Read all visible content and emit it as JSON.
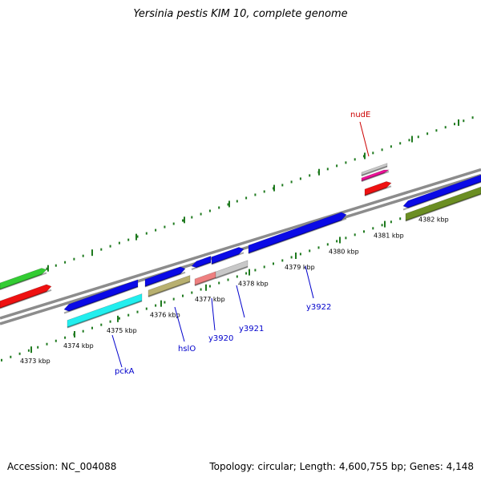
{
  "title": "Yersinia pestis KIM 10, complete genome",
  "footer": {
    "accession": "Accession: NC_004088",
    "summary": "Topology: circular; Length: 4,600,755 bp; Genes: 4,148"
  },
  "colors": {
    "backbone": "#8c8c8c",
    "ruler": "#1f7a1f",
    "blue_label": "#0000cc",
    "red_label": "#cc0000"
  },
  "ruler": {
    "unit": "kbp",
    "ticks": [
      {
        "label": "4373 kbp"
      },
      {
        "label": "4374 kbp"
      },
      {
        "label": "4375 kbp"
      },
      {
        "label": "4376 kbp"
      },
      {
        "label": "4377 kbp"
      },
      {
        "label": "4378 kbp"
      },
      {
        "label": "4379 kbp"
      },
      {
        "label": "4380 kbp"
      },
      {
        "label": "4381 kbp"
      },
      {
        "label": "4382 kbp"
      }
    ]
  },
  "genes": [
    {
      "name": "nudE",
      "color": "red"
    },
    {
      "name": "pckA",
      "color": "blue"
    },
    {
      "name": "hslO",
      "color": "blue"
    },
    {
      "name": "y3920",
      "color": "blue"
    },
    {
      "name": "y3921",
      "color": "blue"
    },
    {
      "name": "y3922",
      "color": "blue"
    }
  ],
  "feature_colors": {
    "blue": "#0a0ae6",
    "red": "#ee1111",
    "green": "#33cc33",
    "cyan": "#22eeee",
    "khaki": "#b8b070",
    "olive": "#6b8e23",
    "pink": "#ee8080",
    "magenta": "#ee1199",
    "silver": "#c8c8c8"
  }
}
